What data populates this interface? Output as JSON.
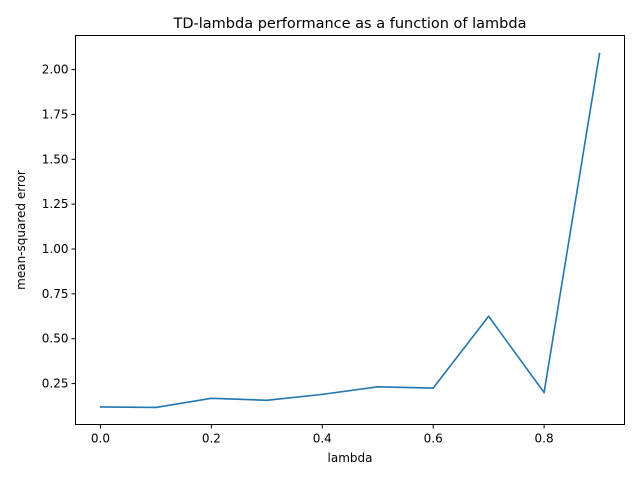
{
  "chart_data": {
    "type": "line",
    "title": "TD-lambda performance as a function of lambda",
    "xlabel": "lambda",
    "ylabel": "mean-squared error",
    "x": [
      0.0,
      0.1,
      0.2,
      0.3,
      0.4,
      0.5,
      0.6,
      0.7,
      0.8,
      0.9
    ],
    "series": [
      {
        "name": "",
        "values": [
          0.12,
          0.117,
          0.168,
          0.157,
          0.19,
          0.232,
          0.225,
          0.625,
          0.2,
          2.09
        ],
        "color": "#1f77b4"
      }
    ],
    "xlim": [
      -0.045,
      0.945
    ],
    "ylim": [
      0.022,
      2.19
    ],
    "xticks": [
      {
        "value": 0.0,
        "label": "0.0"
      },
      {
        "value": 0.2,
        "label": "0.2"
      },
      {
        "value": 0.4,
        "label": "0.4"
      },
      {
        "value": 0.6,
        "label": "0.6"
      },
      {
        "value": 0.8,
        "label": "0.8"
      }
    ],
    "yticks": [
      {
        "value": 0.25,
        "label": "0.25"
      },
      {
        "value": 0.5,
        "label": "0.50"
      },
      {
        "value": 0.75,
        "label": "0.75"
      },
      {
        "value": 1.0,
        "label": "1.00"
      },
      {
        "value": 1.25,
        "label": "1.25"
      },
      {
        "value": 1.5,
        "label": "1.50"
      },
      {
        "value": 1.75,
        "label": "1.75"
      },
      {
        "value": 2.0,
        "label": "2.00"
      }
    ],
    "grid": false,
    "legend": "none"
  }
}
